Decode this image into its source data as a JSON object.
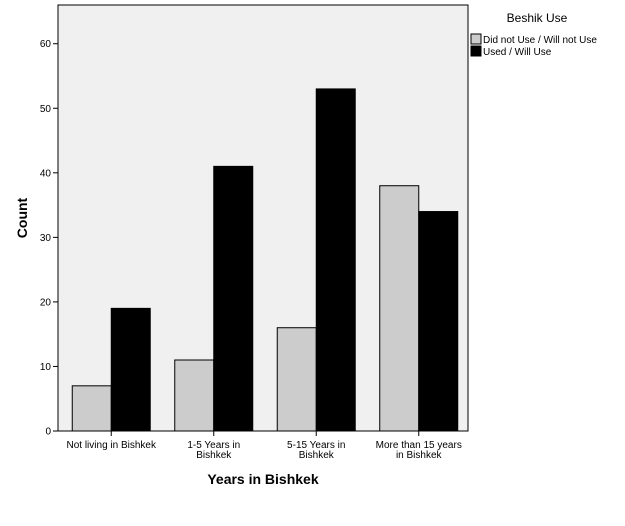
{
  "chart_data": {
    "type": "bar",
    "categories": [
      [
        "Not living in Bishkek"
      ],
      [
        "1-5 Years in",
        "Bishkek"
      ],
      [
        "5-15 Years in",
        "Bishkek"
      ],
      [
        "More than 15 years",
        "in Bishkek"
      ]
    ],
    "series": [
      {
        "name": "Did not Use / Will not Use",
        "values": [
          7,
          11,
          16,
          38
        ],
        "color": "#cccccc"
      },
      {
        "name": "Used / Will Use",
        "values": [
          19,
          41,
          53,
          34
        ],
        "color": "#000000"
      }
    ],
    "xlabel": "Years in Bishkek",
    "ylabel": "Count",
    "ylim": [
      0,
      66
    ],
    "yticks": [
      0,
      10,
      20,
      30,
      40,
      50,
      60
    ],
    "grid": false,
    "legend_title": "Beshik Use",
    "legend_placement": "top-right",
    "plot_background": "#f0f0f0",
    "bar_outline": "#000000"
  }
}
